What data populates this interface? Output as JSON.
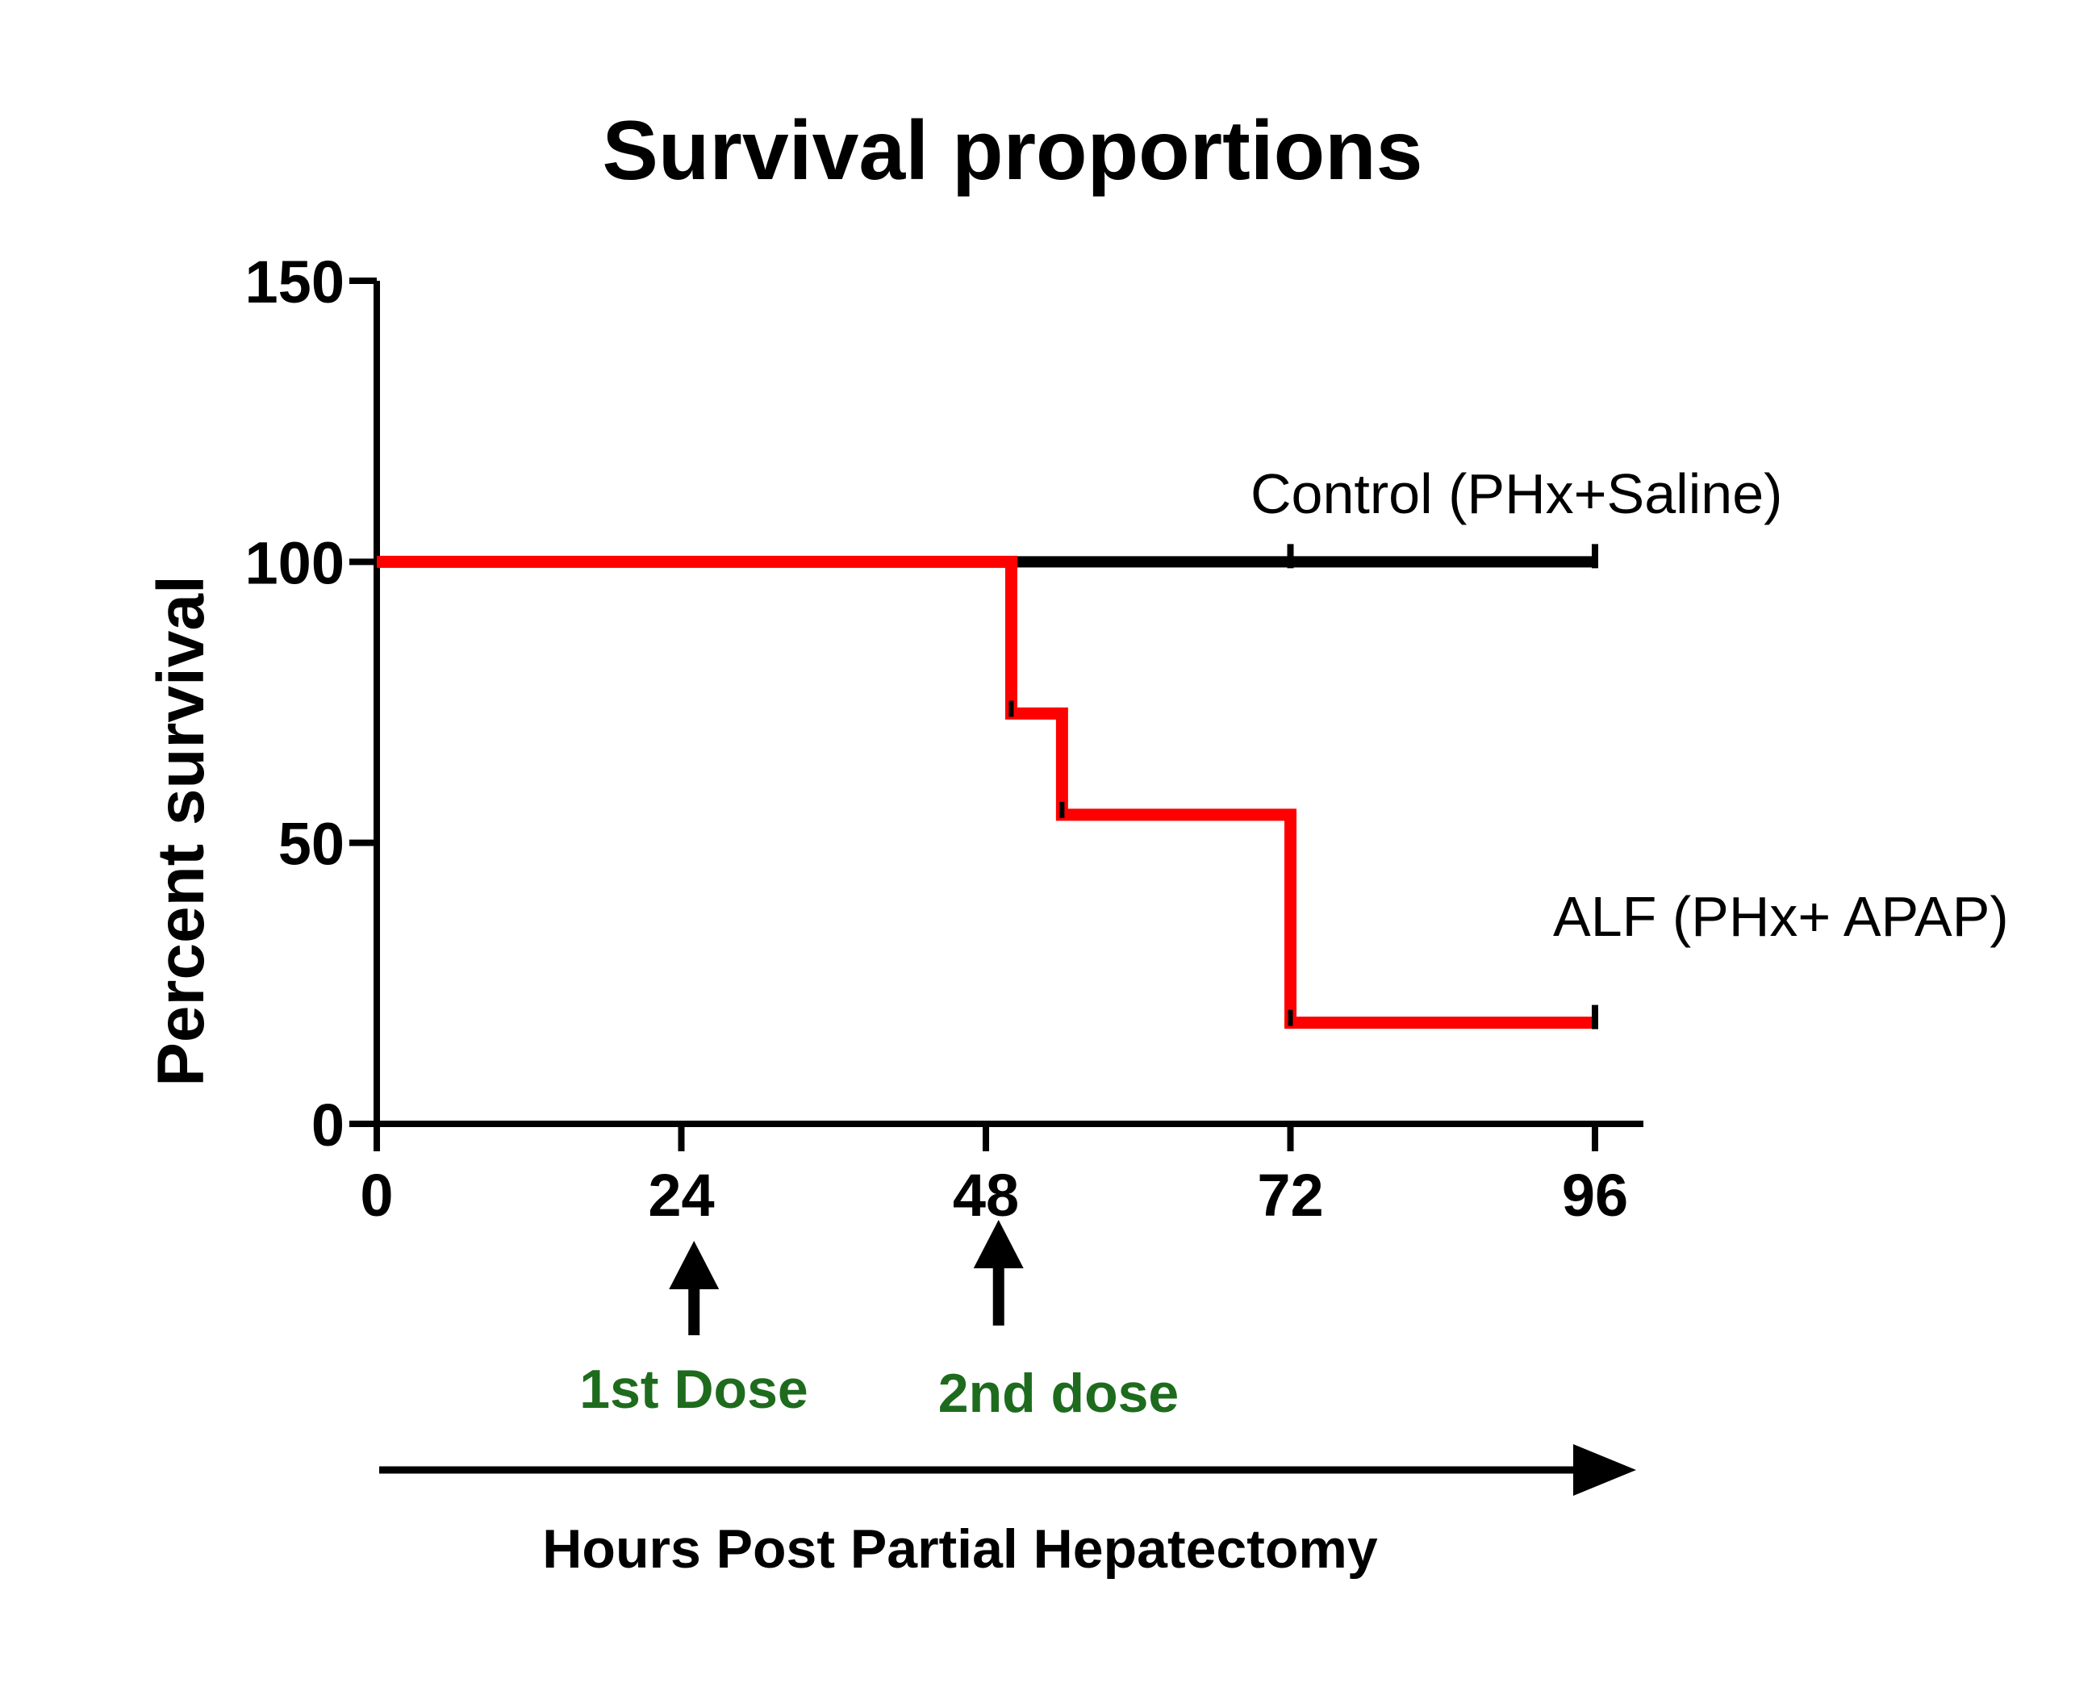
{
  "chart_data": {
    "type": "line",
    "style": "step",
    "title": "Survival proportions",
    "xlabel": "Hours Post Partial Hepatectomy",
    "ylabel": "Percent survival",
    "xlim": [
      0,
      100
    ],
    "ylim": [
      0,
      150
    ],
    "x_ticks": [
      0,
      24,
      48,
      72,
      96
    ],
    "y_ticks": [
      0,
      50,
      100,
      150
    ],
    "series": [
      {
        "name": "Control (PHx+Saline)",
        "color": "#000000",
        "x": [
          0,
          96
        ],
        "y": [
          100,
          100
        ],
        "censored": [
          72,
          96
        ]
      },
      {
        "name": "ALF (PHx+ APAP)",
        "color": "#ff0000",
        "x": [
          0,
          50,
          54,
          72,
          96
        ],
        "y": [
          100,
          73,
          55,
          18,
          18
        ],
        "censored": [
          96
        ]
      }
    ],
    "annotations": [
      {
        "text": "1st Dose",
        "x": 25,
        "color": "#1e6b1e"
      },
      {
        "text": "2nd dose",
        "x": 49,
        "color": "#1e6b1e"
      }
    ]
  }
}
